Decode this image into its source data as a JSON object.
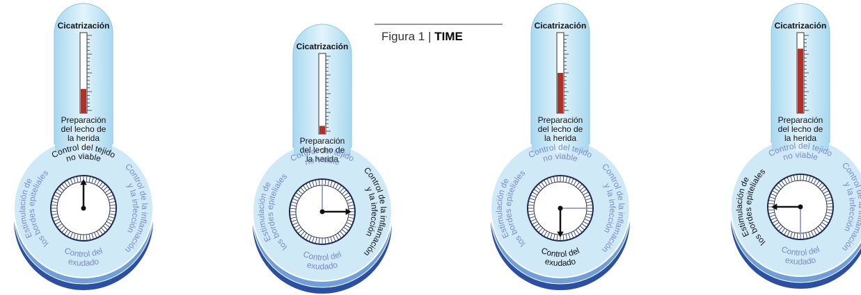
{
  "caption": {
    "label": "Figura 1 |",
    "title": "TIME"
  },
  "panels": [
    {
      "top": "Cicatrización",
      "bottom": [
        "Preparación",
        "del lecho de",
        "la herida"
      ],
      "dial": [
        {
          "lines": [
            "Control del tejido",
            "no viable"
          ]
        },
        {
          "lines": [
            "Control de la inflamación",
            "y la infección"
          ]
        },
        {
          "lines": [
            "Control del",
            "exudado"
          ]
        },
        {
          "lines": [
            "Estimulación de",
            "los bordes epiteliales"
          ]
        }
      ]
    },
    {
      "top": "Cicatrización",
      "bottom": [
        "Preparación",
        "del lecho de",
        "la herida"
      ],
      "dial": [
        {
          "lines": [
            "Control del tejido",
            "no viable"
          ]
        },
        {
          "lines": [
            "Control de la inflamación",
            "y la infección"
          ]
        },
        {
          "lines": [
            "Control del",
            "exudado"
          ]
        },
        {
          "lines": [
            "Estimulación de",
            "los bordes epiteliales"
          ]
        }
      ]
    },
    {
      "top": "Cicatrización",
      "bottom": [
        "Preparación",
        "del lecho de",
        "la herida"
      ],
      "dial": [
        {
          "lines": [
            "Control del tejido",
            "no viable"
          ]
        },
        {
          "lines": [
            "Control de la inflamación",
            "y la infección"
          ]
        },
        {
          "lines": [
            "Control del",
            "exudado"
          ]
        },
        {
          "lines": [
            "Estimulación de",
            "los bordes epiteliales"
          ]
        }
      ]
    },
    {
      "top": "Cicatrización",
      "bottom": [
        "Preparación",
        "del lecho de",
        "la herida"
      ],
      "dial": [
        {
          "lines": [
            "Control del tejido",
            "no viable"
          ]
        },
        {
          "lines": [
            "Control de la inflamación",
            "y la infección"
          ]
        },
        {
          "lines": [
            "Control del",
            "exudado"
          ]
        },
        {
          "lines": [
            "Estimulación de",
            "los bordes epiteliales"
          ]
        }
      ]
    }
  ]
}
